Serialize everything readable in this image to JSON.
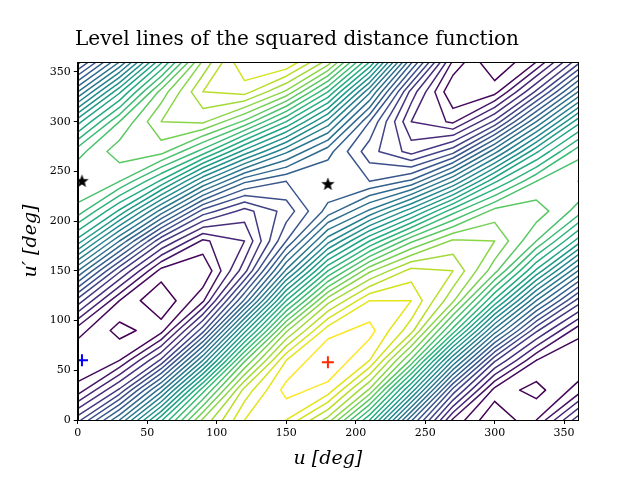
{
  "chart_data": {
    "type": "contour",
    "title": "Level lines of the squared distance function",
    "x_label": "u [deg]",
    "y_label": "u′ [deg]",
    "xlim": [
      0,
      360
    ],
    "ylim": [
      0,
      360
    ],
    "xticks": [
      0,
      50,
      100,
      150,
      200,
      250,
      300,
      350
    ],
    "yticks": [
      0,
      50,
      100,
      150,
      200,
      250,
      300,
      350
    ],
    "grid": false,
    "contour": {
      "x": [
        0,
        30,
        60,
        90,
        120,
        150,
        180,
        210,
        240,
        270,
        300,
        330,
        360
      ],
      "y": [
        0,
        30,
        60,
        90,
        120,
        150,
        180,
        210,
        240,
        270,
        300,
        330,
        360
      ],
      "z": [
        [
          5.8,
          8.5,
          11.9,
          15.1,
          17,
          17,
          15.3,
          12,
          7.6,
          3.9,
          2.5,
          3.5,
          5.8
        ],
        [
          3.7,
          5.6,
          8.8,
          12.8,
          16.2,
          17.7,
          17.3,
          14.9,
          10.8,
          6.3,
          3.3,
          2.8,
          3.7
        ],
        [
          3,
          3.5,
          5.6,
          9.5,
          13.9,
          17,
          18,
          17,
          13.9,
          9.5,
          5.6,
          3.5,
          3
        ],
        [
          3.7,
          2.8,
          3.3,
          6.3,
          10.8,
          14.9,
          17.3,
          17.7,
          16.2,
          12.8,
          8.8,
          5.6,
          3.7
        ],
        [
          5.8,
          3.5,
          2.5,
          3.9,
          7.6,
          12,
          15.3,
          17,
          17,
          15.1,
          11.9,
          8.5,
          5.8
        ],
        [
          8.5,
          5.6,
          3.3,
          3,
          5.3,
          9.1,
          12.5,
          14.9,
          16.2,
          16,
          14.2,
          11.4,
          8.5
        ],
        [
          11.3,
          8.5,
          5.6,
          3.9,
          4.5,
          7,
          9.8,
          12,
          13.9,
          15.1,
          15,
          13.5,
          11.3
        ],
        [
          13.3,
          11.4,
          8.8,
          6.3,
          5.3,
          6.2,
          7.7,
          9.1,
          10.8,
          12.8,
          14.2,
          14.3,
          13.3
        ],
        [
          14,
          13.5,
          11.9,
          9.5,
          7.6,
          7,
          7,
          7,
          7.6,
          9.5,
          11.9,
          13.5,
          14
        ],
        [
          13.3,
          14.3,
          14.2,
          12.8,
          10.8,
          9.1,
          7.7,
          6.2,
          5.3,
          6.3,
          8.8,
          11.4,
          13.3
        ],
        [
          11.3,
          13.5,
          15,
          15.1,
          13.9,
          12,
          9.8,
          7,
          4.5,
          3.9,
          5.6,
          8.5,
          11.3
        ],
        [
          8.5,
          11.4,
          14.2,
          16,
          16.2,
          14.9,
          12.5,
          9.1,
          5.3,
          3,
          3.3,
          5.6,
          8.5
        ],
        [
          5.8,
          8.5,
          11.9,
          15.1,
          17,
          17,
          15.3,
          12,
          7.6,
          3.9,
          2.5,
          3.5,
          5.8
        ]
      ],
      "levels": [
        3,
        3.5,
        4,
        4.5,
        5,
        5.5,
        6,
        6.5,
        7,
        7.5,
        8,
        8.5,
        9,
        9.5,
        10,
        10.5,
        11,
        11.5,
        12,
        12.5,
        13,
        13.5,
        14,
        14.5,
        15,
        15.5,
        16,
        16.5,
        17,
        17.5
      ],
      "colors": [
        "#440154",
        "#46085c",
        "#471365",
        "#482576",
        "#472d7b",
        "#453882",
        "#414487",
        "#3d4e8a",
        "#39568c",
        "#355f8d",
        "#31688e",
        "#2d708e",
        "#2a788e",
        "#27808e",
        "#23898e",
        "#21918c",
        "#1f998a",
        "#20a386",
        "#25ac82",
        "#2eb37c",
        "#3bbb75",
        "#4ac16d",
        "#5cc863",
        "#75d054",
        "#8bd646",
        "#a2da37",
        "#bade28",
        "#d2e21b",
        "#e5e419",
        "#fde725"
      ]
    },
    "series": [
      {
        "type": "scatter",
        "marker": "star",
        "color": "#000000",
        "x": [
          180,
          3
        ],
        "y": [
          237,
          240
        ]
      },
      {
        "type": "scatter",
        "marker": "plus",
        "color": "#ff2a00",
        "x": [
          180
        ],
        "y": [
          58
        ]
      },
      {
        "type": "scatter",
        "marker": "plus",
        "color": "#0000ff",
        "x": [
          3
        ],
        "y": [
          60
        ]
      }
    ]
  }
}
